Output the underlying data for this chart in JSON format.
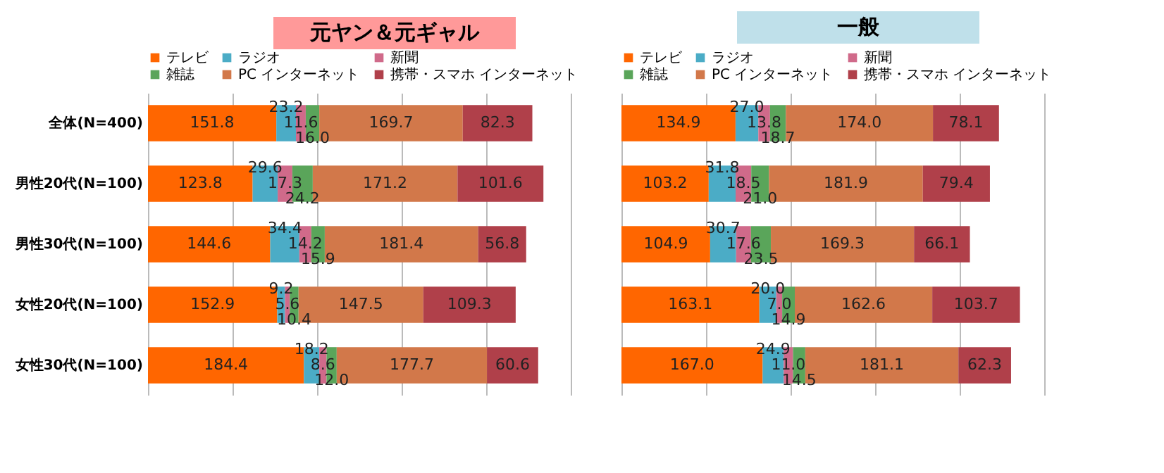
{
  "chart_data": [
    {
      "type": "bar",
      "orientation": "horizontal",
      "stacked": true,
      "title": "元ヤン＆元ギャル",
      "categories": [
        "全体(N=400)",
        "男性20代(N=100)",
        "男性30代(N=100)",
        "女性20代(N=100)",
        "女性30代(N=100)"
      ],
      "series": [
        {
          "name": "テレビ",
          "color": "#ff6600",
          "values": [
            151.8,
            123.8,
            144.6,
            152.9,
            184.4
          ],
          "value_labels": [
            "151.8",
            "123.8",
            "144.6",
            "152.9",
            "184.4"
          ]
        },
        {
          "name": "ラジオ",
          "color": "#4bacc6",
          "values": [
            23.2,
            29.6,
            34.4,
            9.2,
            18.2
          ],
          "value_labels": [
            "23.2",
            "29.6",
            "34.4",
            "9.2",
            "18.2"
          ]
        },
        {
          "name": "新聞",
          "color": "#d06a8a",
          "values": [
            11.6,
            17.3,
            14.2,
            5.6,
            8.6
          ],
          "value_labels": [
            "11.6",
            "17.3",
            "14.2",
            "5.6",
            "8.6"
          ]
        },
        {
          "name": "雑誌",
          "color": "#5aa55a",
          "values": [
            16.0,
            24.2,
            15.9,
            10.4,
            12.0
          ],
          "value_labels": [
            "16.0",
            "24.2",
            "15.9",
            "10.4",
            "12.0"
          ]
        },
        {
          "name": "PC インターネット",
          "color": "#d2784a",
          "values": [
            169.7,
            171.2,
            181.4,
            147.5,
            177.7
          ],
          "value_labels": [
            "169.7",
            "171.2",
            "181.4",
            "147.5",
            "177.7"
          ]
        },
        {
          "name": "携帯・スマホ インターネット",
          "color": "#b0404a",
          "values": [
            82.3,
            101.6,
            56.8,
            109.3,
            60.6
          ],
          "value_labels": [
            "82.3",
            "101.6",
            "56.8",
            "109.3",
            "60.6"
          ]
        }
      ],
      "xlim": [
        0,
        500
      ],
      "xticks": [
        {
          "value": 0,
          "label": null
        },
        {
          "value": 100,
          "label": null
        },
        {
          "value": 200,
          "label": null
        },
        {
          "value": 300,
          "label": null
        },
        {
          "value": 400,
          "label": null
        },
        {
          "value": 500,
          "label": null
        }
      ],
      "grid": "x",
      "legend": "top",
      "tick_labels": "y"
    },
    {
      "type": "bar",
      "orientation": "horizontal",
      "stacked": true,
      "title": "一般",
      "categories": [
        null,
        null,
        null,
        null,
        null
      ],
      "series": [
        {
          "name": "テレビ",
          "color": "#ff6600",
          "values": [
            134.9,
            103.2,
            104.9,
            163.1,
            167.0
          ],
          "value_labels": [
            "134.9",
            "103.2",
            "104.9",
            "163.1",
            "167.0"
          ]
        },
        {
          "name": "ラジオ",
          "color": "#4bacc6",
          "values": [
            27.0,
            31.8,
            30.7,
            20.0,
            24.9
          ],
          "value_labels": [
            "27.0",
            "31.8",
            "30.7",
            "20.0",
            "24.9"
          ]
        },
        {
          "name": "新聞",
          "color": "#d06a8a",
          "values": [
            13.8,
            18.5,
            17.6,
            7.0,
            11.0
          ],
          "value_labels": [
            "13.8",
            "18.5",
            "17.6",
            "7.0",
            "11.0"
          ]
        },
        {
          "name": "雑誌",
          "color": "#5aa55a",
          "values": [
            18.7,
            21.0,
            23.5,
            14.9,
            14.5
          ],
          "value_labels": [
            "18.7",
            "21.0",
            "23.5",
            "14.9",
            "14.5"
          ]
        },
        {
          "name": "PC インターネット",
          "color": "#d2784a",
          "values": [
            174.0,
            181.9,
            169.3,
            162.6,
            181.1
          ],
          "value_labels": [
            "174.0",
            "181.9",
            "169.3",
            "162.6",
            "181.1"
          ]
        },
        {
          "name": "携帯・スマホ インターネット",
          "color": "#b0404a",
          "values": [
            78.1,
            79.4,
            66.1,
            103.7,
            62.3
          ],
          "value_labels": [
            "78.1",
            "79.4",
            "66.1",
            "103.7",
            "62.3"
          ]
        }
      ],
      "xlim": [
        0,
        500
      ],
      "xticks": [
        {
          "value": 0,
          "label": null
        },
        {
          "value": 100,
          "label": null
        },
        {
          "value": 200,
          "label": null
        },
        {
          "value": 300,
          "label": null
        },
        {
          "value": 400,
          "label": null
        },
        {
          "value": 500,
          "label": null
        }
      ],
      "grid": "x",
      "legend": "top",
      "tick_labels": false
    }
  ]
}
